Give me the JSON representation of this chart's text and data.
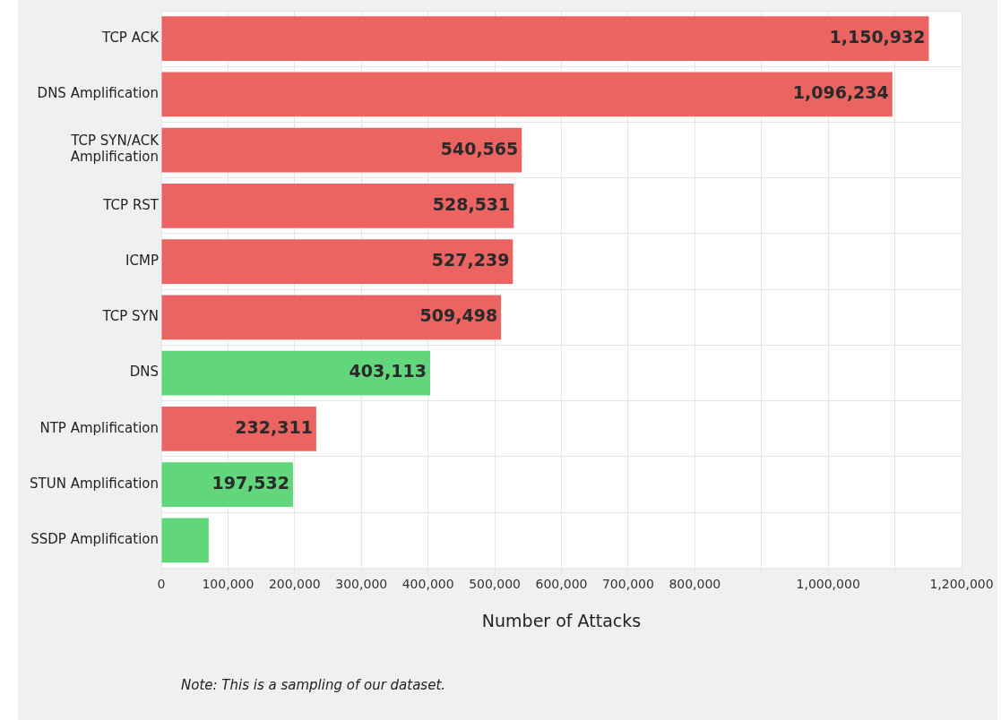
{
  "chart_data": {
    "type": "bar",
    "orientation": "horizontal",
    "categories": [
      "TCP ACK",
      "DNS Amplification",
      "TCP SYN/ACK Amplification",
      "TCP RST",
      "ICMP",
      "TCP SYN",
      "DNS",
      "NTP Amplification",
      "STUN Amplification",
      "SSDP Amplification"
    ],
    "values": [
      1150932,
      1096234,
      540565,
      528531,
      527239,
      509498,
      403113,
      232311,
      197532,
      71000
    ],
    "colors": [
      "#ec6461",
      "#ec6461",
      "#ec6461",
      "#ec6461",
      "#ec6461",
      "#ec6461",
      "#62d67a",
      "#ec6461",
      "#62d67a",
      "#62d67a"
    ],
    "value_labels": [
      "1,150,932",
      "1,096,234",
      "540,565",
      "528,531",
      "527,239",
      "509,498",
      "403,113",
      "232,311",
      "197,532",
      null
    ],
    "xlabel": "Number of Attacks",
    "xlim": [
      0,
      1200000
    ],
    "xticks": [
      0,
      {
        "value": 100000,
        "label": "100,000"
      },
      {
        "value": 200000,
        "label": "200,000"
      },
      {
        "value": 300000,
        "label": "300,000"
      },
      {
        "value": 400000,
        "label": "400,000"
      },
      {
        "value": 500000,
        "label": "500,000"
      },
      {
        "value": 600000,
        "label": "600,000"
      },
      {
        "value": 700000,
        "label": "700,000"
      },
      {
        "value": 800000,
        "label": "800,000"
      },
      {
        "value": 900000,
        "label": null
      },
      {
        "value": 1000000,
        "label": "1,000,000"
      },
      {
        "value": 1100000,
        "label": null
      },
      {
        "value": 1200000,
        "label": "1,200,000"
      }
    ],
    "grid": true,
    "annotations": [
      "Note: This is a sampling of our dataset."
    ]
  }
}
